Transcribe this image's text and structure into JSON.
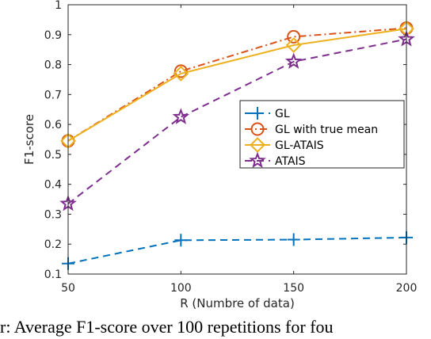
{
  "chart_data": {
    "type": "line",
    "xlabel": "R (Numbre of data)",
    "ylabel": "F1-score",
    "xlim": [
      50,
      200
    ],
    "ylim": [
      0.1,
      1.0
    ],
    "x": [
      50,
      100,
      150,
      200
    ],
    "x_ticks": [
      "50",
      "100",
      "150",
      "200"
    ],
    "y_ticks": [
      "0.1",
      "0.2",
      "0.3",
      "0.4",
      "0.5",
      "0.6",
      "0.7",
      "0.8",
      "0.9",
      "1"
    ],
    "grid": false,
    "legend_position": "center-right",
    "series": [
      {
        "name": "GL",
        "values": [
          0.135,
          0.213,
          0.215,
          0.222
        ],
        "color": "#0072BD",
        "marker": "plus",
        "line": "dashed"
      },
      {
        "name": "GL with true mean",
        "values": [
          0.545,
          0.778,
          0.893,
          0.922
        ],
        "color": "#D95319",
        "marker": "circle",
        "line": "dashdot"
      },
      {
        "name": "GL-ATAIS",
        "values": [
          0.545,
          0.77,
          0.865,
          0.92
        ],
        "color": "#EDB120",
        "marker": "diamond",
        "line": "solid"
      },
      {
        "name": "ATAIS",
        "values": [
          0.335,
          0.625,
          0.81,
          0.885
        ],
        "color": "#7E2F8E",
        "marker": "star",
        "line": "dashed"
      }
    ]
  },
  "caption": "r: Average F1-score over 100 repetitions for fou"
}
